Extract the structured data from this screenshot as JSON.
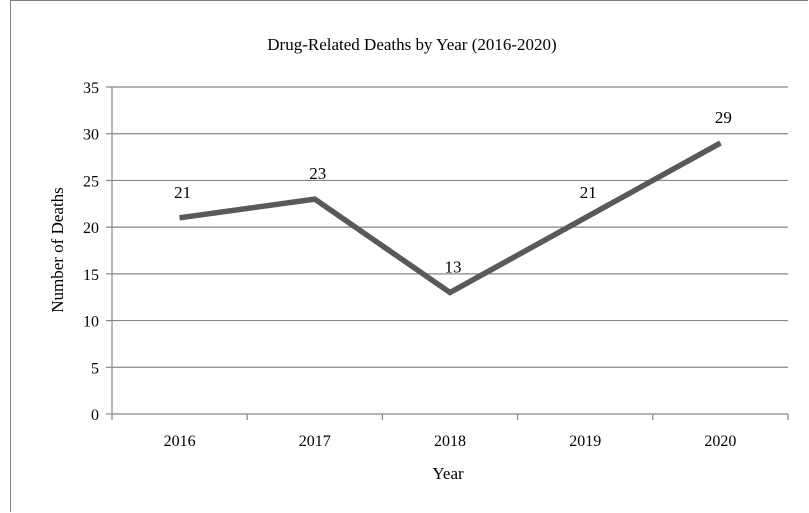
{
  "chart_data": {
    "type": "line",
    "title": "Drug-Related Deaths by Year (2016-2020)",
    "xlabel": "Year",
    "ylabel": "Number of Deaths",
    "categories": [
      "2016",
      "2017",
      "2018",
      "2019",
      "2020"
    ],
    "values": [
      21,
      23,
      13,
      21,
      29
    ],
    "ylim": [
      0,
      35
    ],
    "yticks": [
      "0",
      "5",
      "10",
      "15",
      "20",
      "25",
      "30",
      "35"
    ],
    "data_labels": [
      "21",
      "23",
      "13",
      "21",
      "29"
    ],
    "grid": true,
    "legend": "none",
    "line_color": "#595959",
    "grid_color": "#868686"
  }
}
